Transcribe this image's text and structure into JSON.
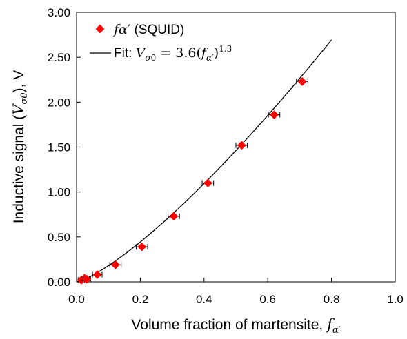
{
  "chart_data": {
    "type": "scatter",
    "xlabel": "Volume fraction of martensite, ",
    "xlabel_math": "f",
    "xlabel_sub": "α′",
    "ylabel_pre": "Inductive signal (",
    "ylabel_math": "V",
    "ylabel_sub": "σ0",
    "ylabel_post": "), V",
    "xlim": [
      0.0,
      1.0
    ],
    "ylim": [
      0.0,
      3.0
    ],
    "x_ticks": [
      "0.0",
      "0.2",
      "0.4",
      "0.6",
      "0.8",
      "1.0"
    ],
    "y_ticks": [
      "0.00",
      "0.50",
      "1.00",
      "1.50",
      "2.00",
      "2.50",
      "3.00"
    ],
    "grid": false,
    "legend_position": "top-left",
    "series": [
      {
        "name": "fα′ (SQUID)",
        "name_math": "fα′",
        "name_text": " (SQUID)",
        "marker": "diamond",
        "color": "#ff0000",
        "x": [
          0.015,
          0.025,
          0.032,
          0.065,
          0.122,
          0.205,
          0.305,
          0.412,
          0.518,
          0.62,
          0.708
        ],
        "y": [
          0.02,
          0.04,
          0.03,
          0.08,
          0.19,
          0.39,
          0.73,
          1.1,
          1.52,
          1.86,
          2.23
        ],
        "xerr": [
          0.01,
          0.01,
          0.012,
          0.015,
          0.018,
          0.018,
          0.018,
          0.018,
          0.018,
          0.018,
          0.018
        ]
      }
    ],
    "fit": {
      "name_prefix": "Fit: ",
      "equation": "Vσ0 = 3.6(fα′)^1.3",
      "coefficient": 3.6,
      "exponent": 1.3,
      "x_range": [
        0.0,
        0.8
      ],
      "color": "#000000"
    }
  }
}
